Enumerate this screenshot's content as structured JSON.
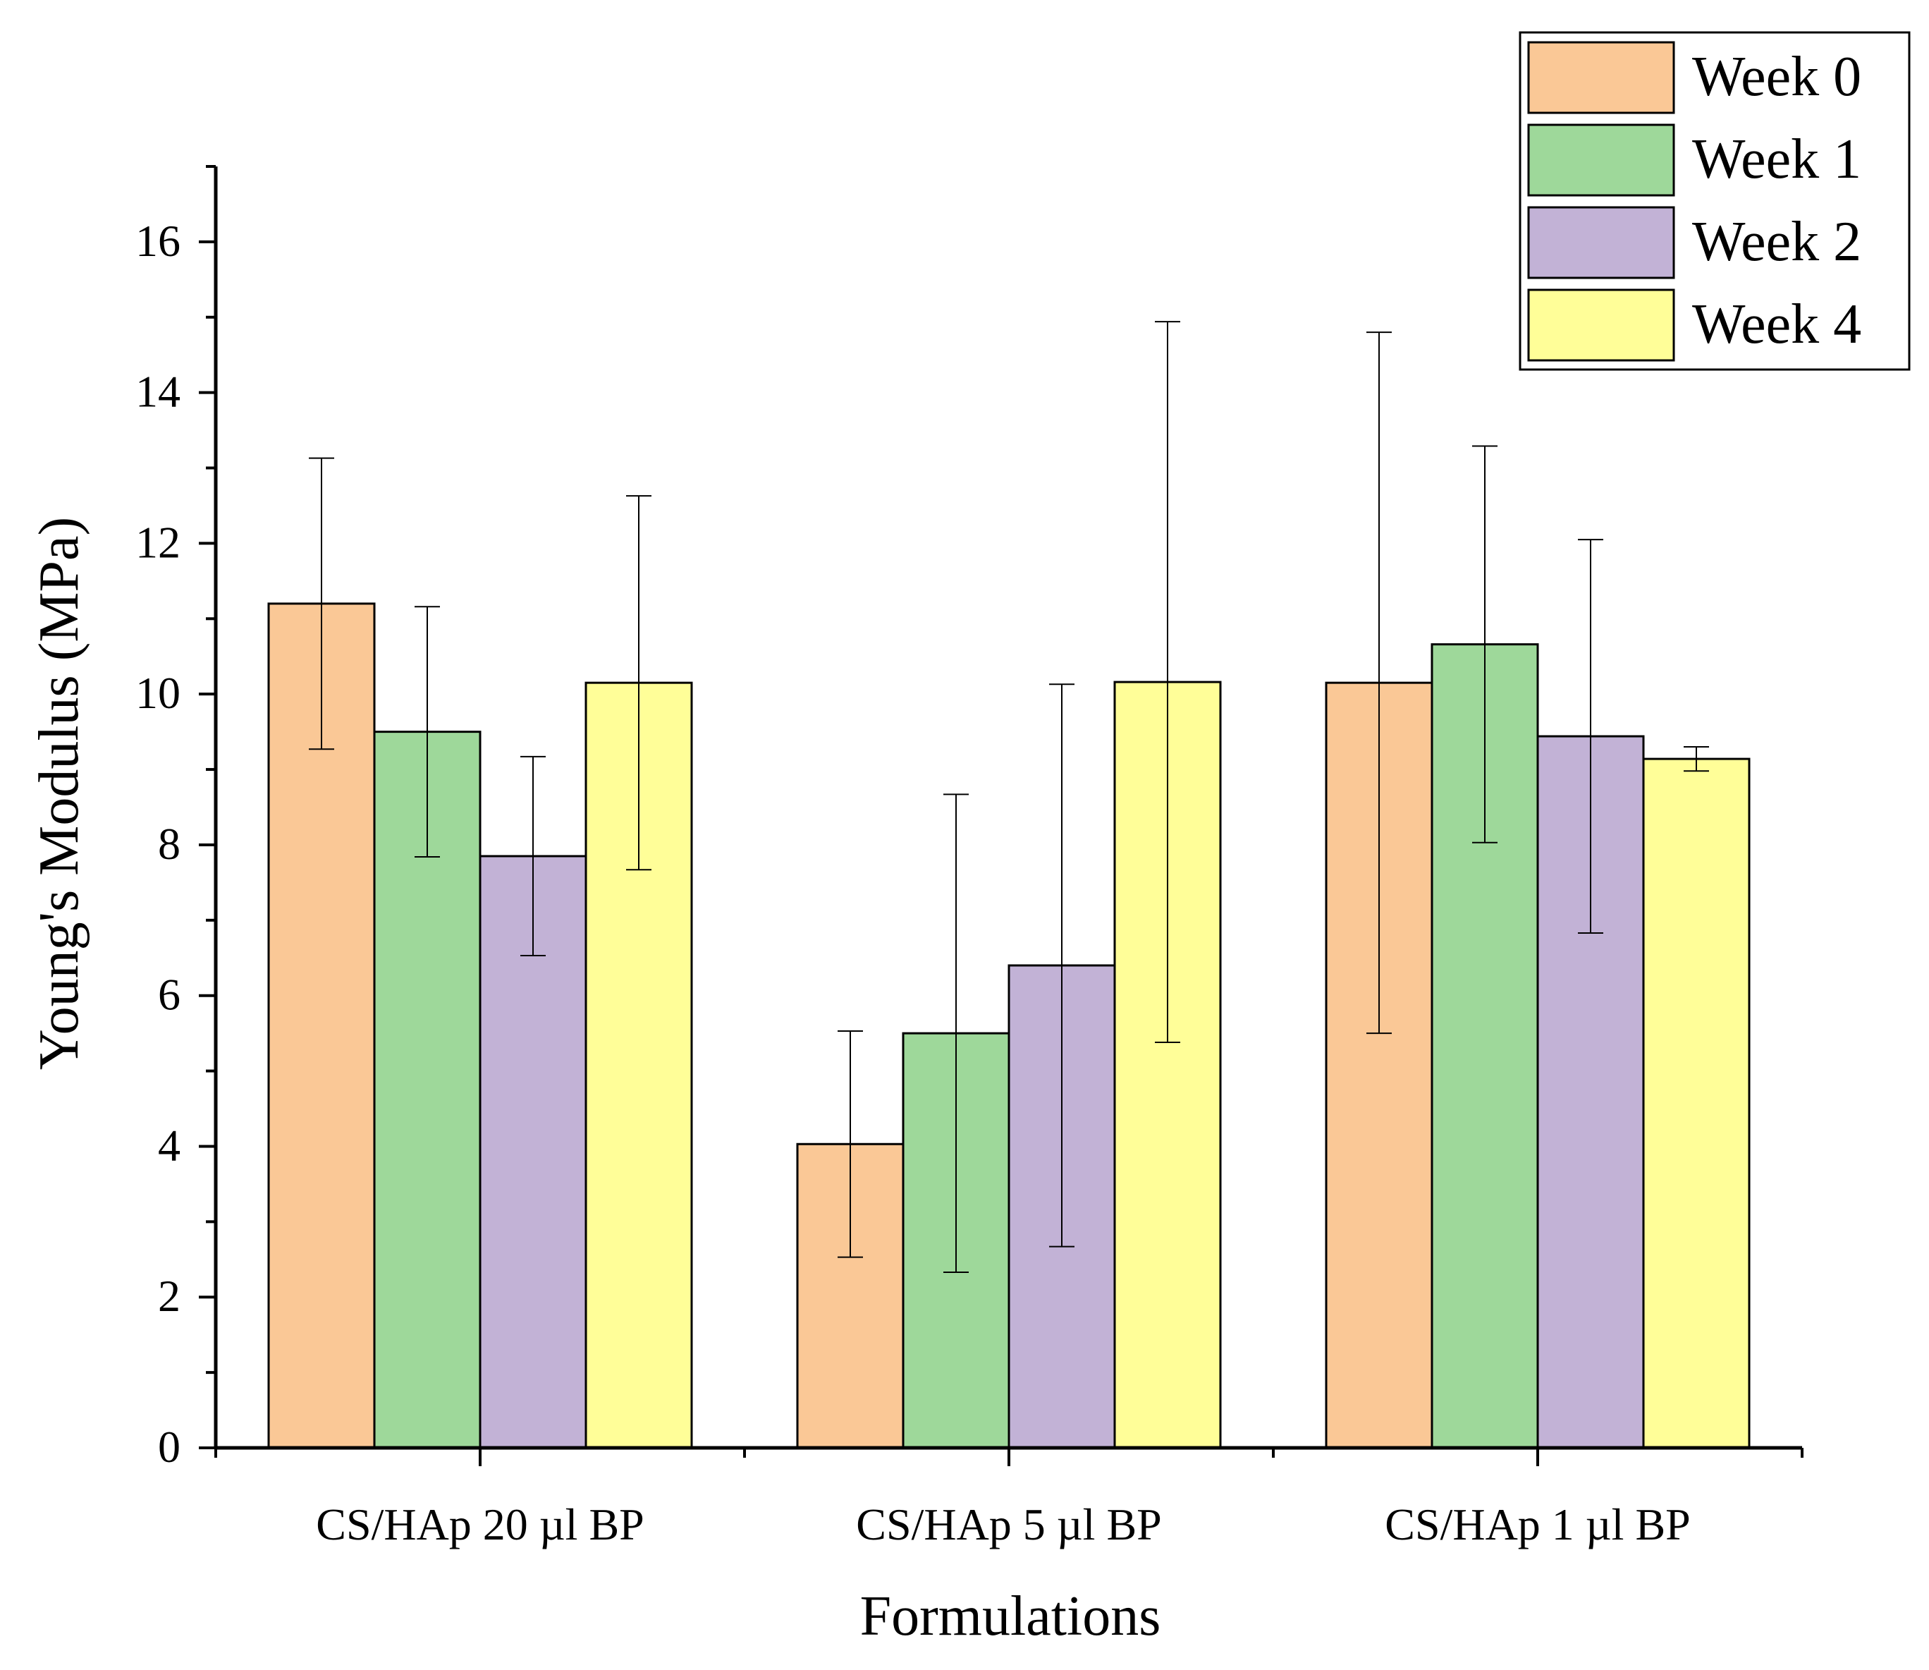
{
  "chart_data": {
    "type": "bar",
    "title": "",
    "xlabel": "Formulations",
    "ylabel": "Young's Modulus (MPa)",
    "ylim": [
      0,
      17
    ],
    "yticks": [
      0,
      2,
      4,
      6,
      8,
      10,
      12,
      14,
      16
    ],
    "grid": false,
    "legend_position": "top-right",
    "categories": [
      "CS/HAp 20 µl BP",
      "CS/HAp 5 µl BP",
      "CS/HAp 1 µl BP"
    ],
    "series": [
      {
        "name": "Week 0",
        "color": "#FAC896",
        "values": [
          11.2,
          4.03,
          10.15
        ],
        "errors": [
          1.93,
          1.5,
          4.65
        ]
      },
      {
        "name": "Week 1",
        "color": "#9ED89A",
        "values": [
          9.5,
          5.5,
          10.66
        ],
        "errors": [
          1.66,
          3.17,
          2.63
        ]
      },
      {
        "name": "Week 2",
        "color": "#C2B2D6",
        "values": [
          7.85,
          6.4,
          9.44
        ],
        "errors": [
          1.32,
          3.73,
          2.61
        ]
      },
      {
        "name": "Week 4",
        "color": "#FFFE98",
        "values": [
          10.15,
          10.16,
          9.14
        ],
        "errors": [
          2.48,
          4.78,
          0.16
        ]
      }
    ]
  }
}
